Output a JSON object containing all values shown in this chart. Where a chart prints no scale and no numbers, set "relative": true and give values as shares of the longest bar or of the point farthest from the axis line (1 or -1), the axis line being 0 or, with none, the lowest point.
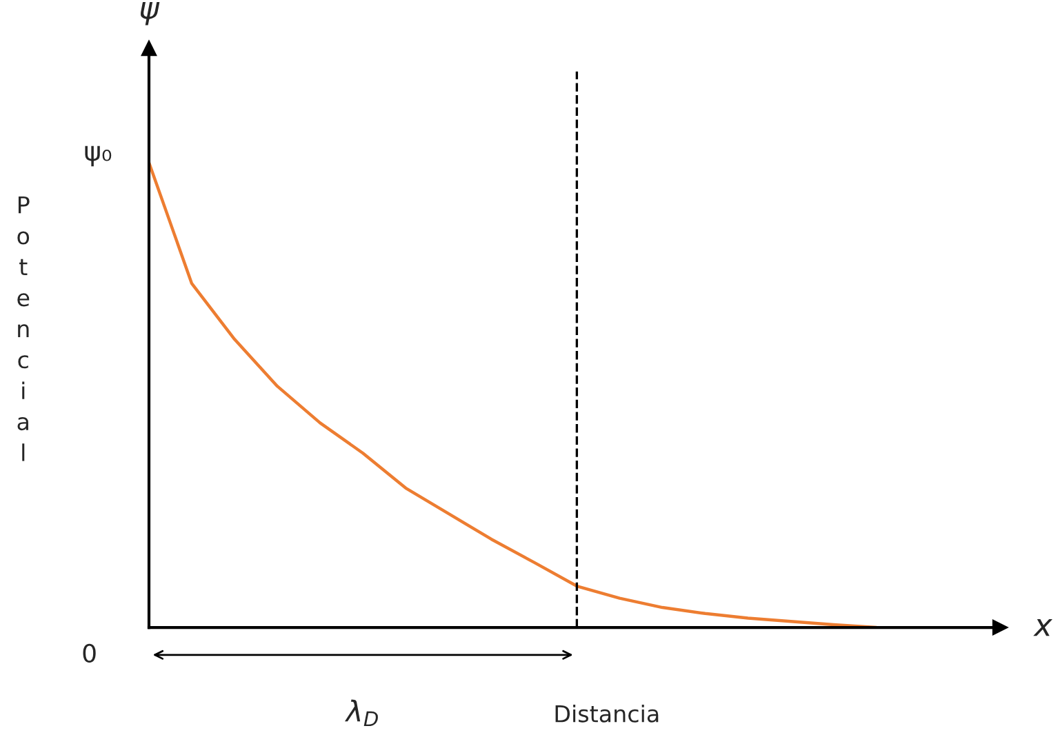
{
  "chart_data": {
    "type": "line",
    "xlabel": "Distancia",
    "ylabel": "Potencial",
    "annotations": [
      "ψ",
      "x",
      "λ$_{D}$",
      "0",
      "ψ₀"
    ],
    "categories": [
      null,
      null,
      null,
      null,
      null,
      null,
      null,
      null,
      null,
      null,
      null,
      null,
      null,
      null,
      null,
      null,
      null,
      null
    ],
    "series": [
      {
        "color": "#ed7d31",
        "values": [
          1.0,
          0.74,
          0.62,
          0.519,
          0.44,
          0.375,
          0.3,
          0.245,
          0.19,
          0.14,
          0.089,
          0.063,
          0.043,
          0.03,
          0.02,
          0.013,
          0.006,
          0.0
        ]
      }
    ],
    "relative": true,
    "grid": false,
    "legend": false,
    "marker": "none",
    "line_style": "solid"
  }
}
